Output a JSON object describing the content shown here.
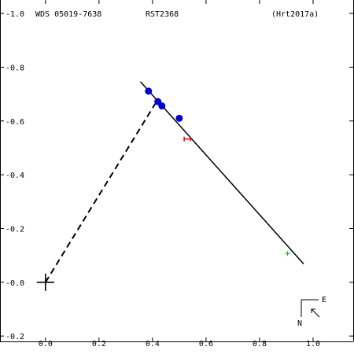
{
  "header": {
    "left": "WDS 05019-7638",
    "center": "RST2368",
    "right": "(Hrt2017a)"
  },
  "compass": {
    "east_label": "E",
    "north_label": "N"
  },
  "chart_data": {
    "type": "scatter",
    "title": "",
    "xlabel": "",
    "ylabel": "",
    "xlim": [
      -0.17,
      1.15
    ],
    "ylim": [
      -0.22,
      1.05
    ],
    "x_ticks": [
      0.0,
      0.2,
      0.4,
      0.6,
      0.8,
      1.0
    ],
    "y_ticks": [
      -0.2,
      0.0,
      0.2,
      0.4,
      0.6,
      0.8,
      1.0
    ],
    "x_tick_labels": [
      "0.0",
      "0.2",
      "0.4",
      "0.6",
      "0.8",
      "1.0"
    ],
    "y_tick_labels": [
      "-0.2",
      "-0.0",
      "-0.2",
      "-0.4",
      "-0.6",
      "-0.8",
      "-1.0"
    ],
    "primary": {
      "x": 0.0,
      "y": 0.0
    },
    "orbit_line": [
      [
        0.355,
        0.746
      ],
      [
        0.965,
        0.068
      ]
    ],
    "dashed_line": [
      [
        0.0,
        0.0
      ],
      [
        0.41,
        0.664
      ]
    ],
    "observations": [
      {
        "x": 0.385,
        "y": 0.711
      },
      {
        "x": 0.42,
        "y": 0.672
      },
      {
        "x": 0.435,
        "y": 0.656
      },
      {
        "x": 0.5,
        "y": 0.61
      }
    ],
    "latest_measure": {
      "x": 0.53,
      "y": 0.533,
      "color": "#ff0000"
    },
    "predicted_point": {
      "x": 0.905,
      "y": 0.107,
      "color": "#00aa00"
    },
    "colors": {
      "observation": "#0000cc",
      "line": "#000000"
    }
  }
}
